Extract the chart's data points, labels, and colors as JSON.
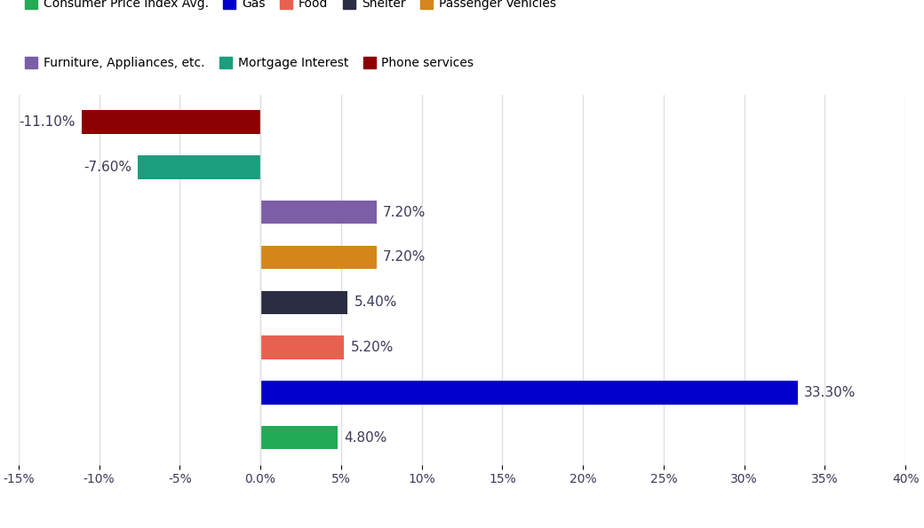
{
  "categories": [
    "Consumer Price Index Avg.",
    "Gas",
    "Food",
    "Shelter",
    "Passenger Vehicles",
    "Furniture, Appliances, etc.",
    "Mortgage Interest",
    "Phone services"
  ],
  "values": [
    4.8,
    33.3,
    5.2,
    5.4,
    7.2,
    7.2,
    -7.6,
    -11.1
  ],
  "colors": [
    "#22aa55",
    "#0000cc",
    "#e8614e",
    "#2b2d42",
    "#d4861a",
    "#7b5ea7",
    "#1a9e7e",
    "#8b0000"
  ],
  "legend_row1": [
    [
      "Consumer Price Index Avg.",
      "#22aa55"
    ],
    [
      "Gas",
      "#0000cc"
    ],
    [
      "Food",
      "#e8614e"
    ],
    [
      "Shelter",
      "#2b2d42"
    ],
    [
      "Passenger Vehicles",
      "#d4861a"
    ]
  ],
  "legend_row2": [
    [
      "Furniture, Appliances, etc.",
      "#7b5ea7"
    ],
    [
      "Mortgage Interest",
      "#1a9e7e"
    ],
    [
      "Phone services",
      "#8b0000"
    ]
  ],
  "xlim": [
    -15,
    40
  ],
  "xticks": [
    -15,
    -10,
    -5,
    0,
    5,
    10,
    15,
    20,
    25,
    30,
    35,
    40
  ],
  "xtick_labels": [
    "-15%",
    "-10%",
    "-5%",
    "0.0%",
    "5%",
    "10%",
    "15%",
    "20%",
    "25%",
    "30%",
    "35%",
    "40%"
  ],
  "background_color": "#ffffff",
  "bar_height": 0.52,
  "value_fontsize": 11,
  "tick_fontsize": 10,
  "legend_fontsize": 10,
  "label_color": "#3a3a5a",
  "grid_color": "#e0e0e0"
}
